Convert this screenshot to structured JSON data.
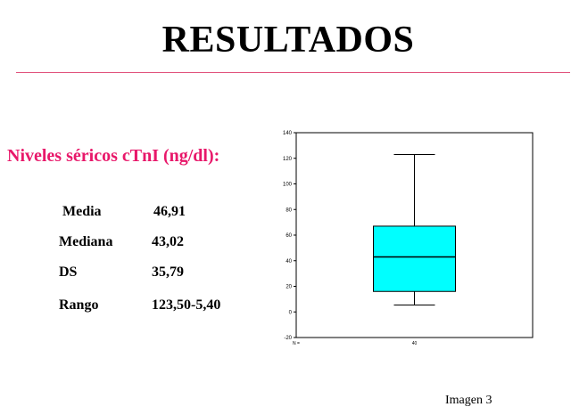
{
  "slide": {
    "title": "RESULTADOS",
    "accent_color": "#e8186a",
    "caption": "Imagen 3"
  },
  "stats": {
    "heading": "Niveles séricos cTnI (ng/dl):",
    "rows": [
      {
        "label": "Media",
        "value": "46,91"
      },
      {
        "label": "Mediana",
        "value": "43,02"
      },
      {
        "label": "DS",
        "value": "35,79"
      },
      {
        "label": "Rango",
        "value": "123,50-5,40"
      }
    ]
  },
  "chart_data": {
    "type": "boxplot",
    "title": "",
    "xlabel": "",
    "ylabel": "",
    "ylim": [
      -20,
      140
    ],
    "yticks": [
      -20,
      0,
      20,
      40,
      60,
      80,
      100,
      120,
      140
    ],
    "grid": false,
    "legend": "none",
    "box_color": "#00ffff",
    "categories": [
      "N ="
    ],
    "counts": [
      "40"
    ],
    "boxes": [
      {
        "whisker_low": 5.4,
        "q1": 16,
        "median": 43,
        "q3": 67,
        "whisker_high": 123
      }
    ]
  }
}
